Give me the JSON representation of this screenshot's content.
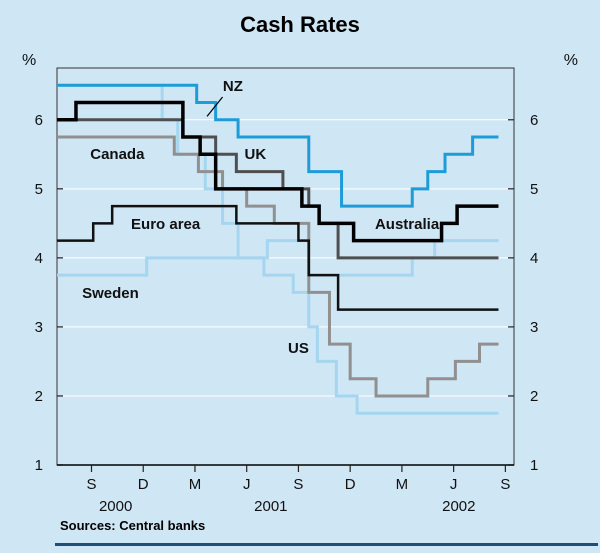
{
  "header": {
    "title": "Cash Rates"
  },
  "axis_units": {
    "left": "%",
    "right": "%"
  },
  "footer": {
    "source": "Sources: Central banks"
  },
  "style": {
    "background": "#cfe6f5",
    "grid_color": "#ffffff",
    "frame_color": "#333333",
    "bottom_rule_color": "#1f4e79"
  },
  "chart_data": {
    "type": "line",
    "subtype": "step",
    "title": "Cash Rates",
    "ylabel": "%",
    "x_unit": "months since Jul 2000",
    "x_range": [
      0,
      26.5
    ],
    "y_range": [
      1,
      6.75
    ],
    "y_ticks": [
      1,
      2,
      3,
      4,
      5,
      6
    ],
    "y_gridlines": [
      2,
      3,
      4,
      5,
      6
    ],
    "x_ticks": [
      {
        "m": 2,
        "label": "S"
      },
      {
        "m": 5,
        "label": "D"
      },
      {
        "m": 8,
        "label": "M"
      },
      {
        "m": 11,
        "label": "J"
      },
      {
        "m": 14,
        "label": "S"
      },
      {
        "m": 17,
        "label": "D"
      },
      {
        "m": 20,
        "label": "M"
      },
      {
        "m": 23,
        "label": "J"
      },
      {
        "m": 26,
        "label": "S"
      }
    ],
    "year_labels": [
      {
        "m": 3.4,
        "label": "2000"
      },
      {
        "m": 12.4,
        "label": "2001"
      },
      {
        "m": 23.3,
        "label": "2002"
      }
    ],
    "series": [
      {
        "name": "Sweden",
        "color": "#a6d6ef",
        "width": 3,
        "end": 25.6,
        "points": [
          [
            0,
            3.75
          ],
          [
            5.2,
            4.0
          ],
          [
            12.2,
            4.25
          ],
          [
            14.6,
            3.75
          ],
          [
            20.6,
            4.0
          ],
          [
            21.9,
            4.25
          ]
        ]
      },
      {
        "name": "US",
        "color": "#a6d6ef",
        "width": 3,
        "end": 25.6,
        "points": [
          [
            0,
            6.5
          ],
          [
            6.1,
            6.0
          ],
          [
            7,
            5.5
          ],
          [
            8.6,
            5.0
          ],
          [
            9.6,
            4.5
          ],
          [
            10.5,
            4.0
          ],
          [
            12,
            3.75
          ],
          [
            13.7,
            3.5
          ],
          [
            14.6,
            3.0
          ],
          [
            15.1,
            2.5
          ],
          [
            16.2,
            2.0
          ],
          [
            17.4,
            1.75
          ]
        ]
      },
      {
        "name": "Canada",
        "color": "#909090",
        "width": 3,
        "end": 25.6,
        "points": [
          [
            0,
            5.75
          ],
          [
            6.8,
            5.5
          ],
          [
            8.2,
            5.25
          ],
          [
            9.6,
            5.0
          ],
          [
            11,
            4.75
          ],
          [
            12.6,
            4.5
          ],
          [
            14.6,
            3.5
          ],
          [
            15.8,
            2.75
          ],
          [
            17,
            2.25
          ],
          [
            18.5,
            2.0
          ],
          [
            21.5,
            2.25
          ],
          [
            23.1,
            2.5
          ],
          [
            24.5,
            2.75
          ]
        ]
      },
      {
        "name": "UK",
        "color": "#4f4f4f",
        "width": 3,
        "end": 25.6,
        "points": [
          [
            0,
            6.0
          ],
          [
            7.3,
            5.75
          ],
          [
            9.2,
            5.5
          ],
          [
            10.4,
            5.25
          ],
          [
            13.1,
            5.0
          ],
          [
            14.6,
            4.75
          ],
          [
            15.2,
            4.5
          ],
          [
            16.3,
            4.0
          ]
        ]
      },
      {
        "name": "NZ",
        "color": "#1e9cd8",
        "width": 3,
        "end": 25.6,
        "points": [
          [
            0,
            6.5
          ],
          [
            8.1,
            6.25
          ],
          [
            9.2,
            6.0
          ],
          [
            10.5,
            5.75
          ],
          [
            14.6,
            5.25
          ],
          [
            16.5,
            4.75
          ],
          [
            20.6,
            5.0
          ],
          [
            21.5,
            5.25
          ],
          [
            22.5,
            5.5
          ],
          [
            24.1,
            5.75
          ]
        ]
      },
      {
        "name": "Euro area",
        "color": "#111111",
        "width": 2.5,
        "end": 25.6,
        "points": [
          [
            0,
            4.25
          ],
          [
            2.1,
            4.5
          ],
          [
            3.2,
            4.75
          ],
          [
            10.4,
            4.5
          ],
          [
            14,
            4.25
          ],
          [
            14.6,
            3.75
          ],
          [
            16.3,
            3.25
          ]
        ]
      },
      {
        "name": "Australia",
        "color": "#000000",
        "width": 3.5,
        "end": 25.6,
        "points": [
          [
            0,
            6.0
          ],
          [
            1.1,
            6.25
          ],
          [
            7.3,
            5.75
          ],
          [
            8.3,
            5.5
          ],
          [
            9.2,
            5.0
          ],
          [
            14.2,
            4.75
          ],
          [
            15.2,
            4.5
          ],
          [
            17.2,
            4.25
          ],
          [
            22.3,
            4.5
          ],
          [
            23.2,
            4.75
          ]
        ]
      }
    ],
    "annotations": [
      {
        "label": "NZ",
        "m": 10.2,
        "v": 6.42,
        "leader": [
          [
            9.6,
            6.33
          ],
          [
            8.7,
            6.05
          ]
        ]
      },
      {
        "label": "Canada",
        "m": 3.5,
        "v": 5.43
      },
      {
        "label": "UK",
        "m": 11.5,
        "v": 5.43
      },
      {
        "label": "Euro area",
        "m": 6.3,
        "v": 4.42
      },
      {
        "label": "Australia",
        "m": 20.3,
        "v": 4.42
      },
      {
        "label": "Sweden",
        "m": 3.1,
        "v": 3.42
      },
      {
        "label": "US",
        "m": 14.0,
        "v": 2.62
      }
    ],
    "legend_position": "inline-annotations",
    "grid": true,
    "source": "Sources: Central banks"
  }
}
